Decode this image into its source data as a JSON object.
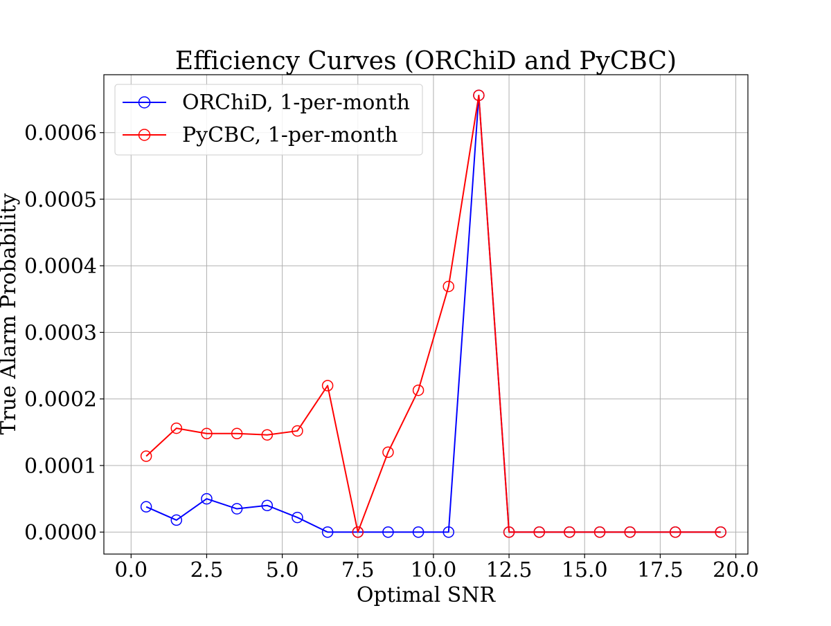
{
  "chart_data": {
    "type": "line",
    "title": "Efficiency Curves (ORChiD and PyCBC)",
    "xlabel": "Optimal SNR",
    "ylabel": "True Alarm Probability",
    "xlim": [
      -0.9,
      20.4
    ],
    "ylim": [
      -3.3e-05,
      0.000687
    ],
    "xticks": [
      0.0,
      2.5,
      5.0,
      7.5,
      10.0,
      12.5,
      15.0,
      17.5,
      20.0
    ],
    "xtick_labels": [
      "0.0",
      "2.5",
      "5.0",
      "7.5",
      "10.0",
      "12.5",
      "15.0",
      "17.5",
      "20.0"
    ],
    "yticks": [
      0.0,
      0.0001,
      0.0002,
      0.0003,
      0.0004,
      0.0005,
      0.0006
    ],
    "ytick_labels": [
      "0.0000",
      "0.0001",
      "0.0002",
      "0.0003",
      "0.0004",
      "0.0005",
      "0.0006"
    ],
    "grid": true,
    "legend_position": "top-left",
    "series": [
      {
        "name": "ORChiD, 1-per-month",
        "color": "#0000ff",
        "marker": "open-circle",
        "x": [
          0.5,
          1.5,
          2.5,
          3.5,
          4.5,
          5.5,
          6.5,
          7.5,
          8.5,
          9.5,
          10.5,
          11.5,
          12.5,
          13.5,
          14.5,
          15.5,
          16.5,
          18.0,
          19.5
        ],
        "y": [
          3.8e-05,
          1.8e-05,
          5e-05,
          3.5e-05,
          4e-05,
          2.2e-05,
          0.0,
          0.0,
          0.0,
          0.0,
          0.0,
          0.000656,
          0.0,
          0.0,
          0.0,
          0.0,
          0.0,
          0.0,
          0.0
        ]
      },
      {
        "name": "PyCBC, 1-per-month",
        "color": "#ff0000",
        "marker": "open-circle",
        "x": [
          0.5,
          1.5,
          2.5,
          3.5,
          4.5,
          5.5,
          6.5,
          7.5,
          8.5,
          9.5,
          10.5,
          11.5,
          12.5,
          13.5,
          14.5,
          15.5,
          16.5,
          18.0,
          19.5
        ],
        "y": [
          0.000114,
          0.000156,
          0.000148,
          0.000148,
          0.000146,
          0.000152,
          0.00022,
          0.0,
          0.00012,
          0.000213,
          0.000369,
          0.000656,
          0.0,
          0.0,
          0.0,
          0.0,
          0.0,
          0.0,
          0.0
        ]
      }
    ]
  }
}
